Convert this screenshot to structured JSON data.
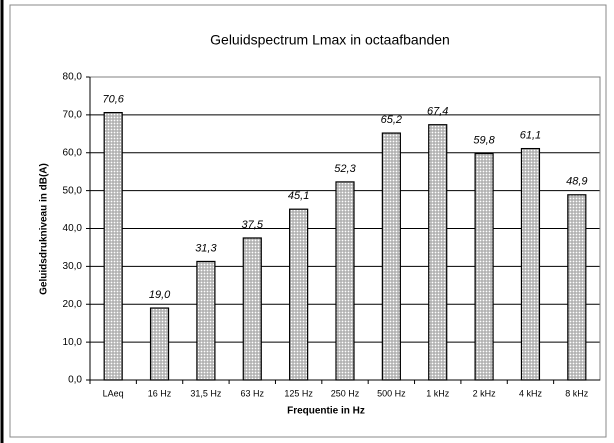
{
  "chart_data": {
    "type": "bar",
    "title": "Geluidspectrum Lmax in octaafbanden",
    "x_label": "Frequentie in Hz",
    "y_label": "Geluidsdrukniveau in dB(A)",
    "categories": [
      "LAeq",
      "16 Hz",
      "31,5 Hz",
      "63 Hz",
      "125 Hz",
      "250 Hz",
      "500 Hz",
      "1 kHz",
      "2 kHz",
      "4 kHz",
      "8 kHz"
    ],
    "values": [
      70.6,
      19.0,
      31.3,
      37.5,
      45.1,
      52.3,
      65.2,
      67.4,
      59.8,
      61.1,
      48.9
    ],
    "value_labels": [
      "70,6",
      "19,0",
      "31,3",
      "37,5",
      "45,1",
      "52,3",
      "65,2",
      "67,4",
      "59,8",
      "61,1",
      "48,9"
    ],
    "color": "#c8c8c8",
    "ylim": [
      0,
      80
    ],
    "yticks": [
      {
        "value": 0,
        "label": "0,0"
      },
      {
        "value": 10,
        "label": "10,0"
      },
      {
        "value": 20,
        "label": "20,0"
      },
      {
        "value": 30,
        "label": "30,0"
      },
      {
        "value": 40,
        "label": "40,0"
      },
      {
        "value": 50,
        "label": "50,0"
      },
      {
        "value": 60,
        "label": "60,0"
      },
      {
        "value": 70,
        "label": "70,0"
      },
      {
        "value": 80,
        "label": "80,0"
      }
    ],
    "grid": true
  }
}
